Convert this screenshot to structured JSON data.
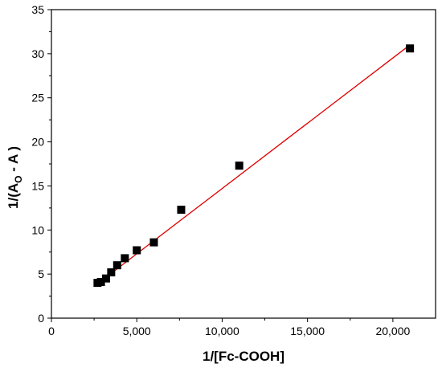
{
  "chart_data": {
    "type": "scatter",
    "title": "",
    "xlabel": "1/[Fc-COOH]",
    "ylabel": {
      "prefix": "1/(A",
      "subscript": "O",
      "suffix": " - A )"
    },
    "xlim": [
      0,
      22500
    ],
    "ylim": [
      0,
      35
    ],
    "xticks": [
      0,
      5000,
      10000,
      15000,
      20000
    ],
    "xtick_labels": [
      "0",
      "5,000",
      "10,000",
      "15,000",
      "20,000"
    ],
    "yticks": [
      0,
      5,
      10,
      15,
      20,
      25,
      30,
      35
    ],
    "ytick_labels": [
      "0",
      "5",
      "10",
      "15",
      "20",
      "25",
      "30",
      "35"
    ],
    "grid": false,
    "series": [
      {
        "marker": "square",
        "color": "#000000",
        "x": [
          2700,
          2900,
          3200,
          3500,
          3850,
          4300,
          5000,
          6000,
          7600,
          11000,
          21000
        ],
        "y": [
          4.0,
          4.1,
          4.5,
          5.2,
          6.0,
          6.8,
          7.7,
          8.6,
          12.3,
          17.3,
          30.6
        ]
      }
    ],
    "fit_line": {
      "color": "#e00000",
      "x": [
        2700,
        21000
      ],
      "y": [
        3.9,
        31.0
      ]
    }
  }
}
